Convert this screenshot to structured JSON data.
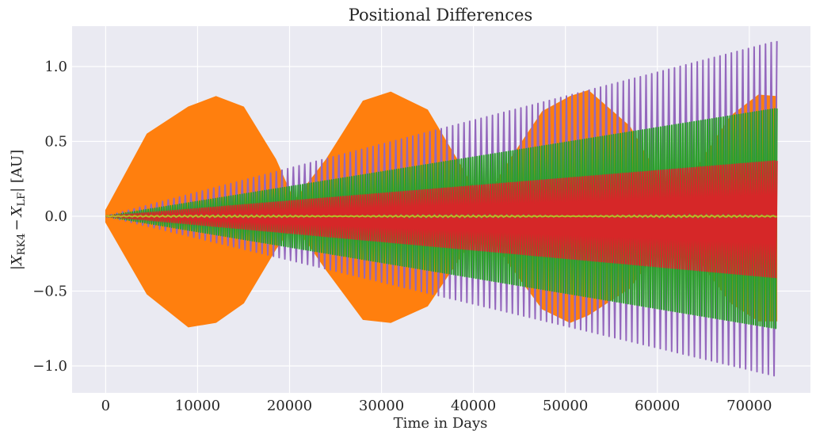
{
  "chart_data": {
    "type": "line",
    "title": "Positional Differences",
    "xlabel": "Time in Days",
    "ylabel": "|X_RK4 − X_LF| [AU]",
    "ylabel_parts": {
      "open": "|",
      "var1": "X",
      "sub1": "RK4",
      "minus": "−",
      "var2": "X",
      "sub2": "LF",
      "close": "| [AU]"
    },
    "xlim": [
      -3650,
      76650
    ],
    "ylim": [
      -1.18,
      1.27
    ],
    "xticks": [
      0,
      10000,
      20000,
      30000,
      40000,
      50000,
      60000,
      70000
    ],
    "xtick_labels": [
      "0",
      "10000",
      "20000",
      "30000",
      "40000",
      "50000",
      "60000",
      "70000"
    ],
    "yticks": [
      -1.0,
      -0.5,
      0.0,
      0.5,
      1.0
    ],
    "ytick_labels": [
      "−1.0",
      "−0.5",
      "0.0",
      "0.5",
      "1.0"
    ],
    "grid": true,
    "background": "#eaeaf2",
    "series": [
      {
        "kind": "beat-envelope",
        "color": "#ff7f0e",
        "x": [
          0,
          4500,
          9000,
          12000,
          15000,
          18500,
          20500,
          24000,
          28000,
          31000,
          35000,
          38500,
          41000,
          44000,
          47500,
          50500,
          52500,
          57000,
          60500,
          64000,
          68000,
          71000,
          73000
        ],
        "upper": [
          0.04,
          0.55,
          0.73,
          0.8,
          0.73,
          0.38,
          0.1,
          0.38,
          0.77,
          0.83,
          0.71,
          0.35,
          0.08,
          0.38,
          0.7,
          0.8,
          0.84,
          0.6,
          0.22,
          0.3,
          0.67,
          0.81,
          0.8
        ],
        "lower": [
          -0.04,
          -0.52,
          -0.74,
          -0.71,
          -0.58,
          -0.22,
          -0.05,
          -0.36,
          -0.69,
          -0.71,
          -0.6,
          -0.28,
          -0.05,
          -0.33,
          -0.62,
          -0.71,
          -0.66,
          -0.48,
          -0.18,
          -0.25,
          -0.58,
          -0.7,
          -0.7
        ]
      },
      {
        "kind": "oscillation",
        "color": "#9467bd",
        "x_start": 0,
        "x_end": 73000,
        "cycles": 118,
        "upper_start": 0.0,
        "upper_end": 1.17,
        "lower_start": 0.0,
        "lower_end": -1.07
      },
      {
        "kind": "oscillation",
        "color": "#2ca02c",
        "x_start": 0,
        "x_end": 73000,
        "cycles": 300,
        "upper_start": 0.0,
        "upper_end": 0.72,
        "lower_start": 0.0,
        "lower_end": -0.75
      },
      {
        "kind": "oscillation",
        "color": "#d62728",
        "x_start": 0,
        "x_end": 73000,
        "cycles": 300,
        "upper_start": 0.0,
        "upper_end": 0.37,
        "lower_start": 0.0,
        "lower_end": -0.41
      },
      {
        "kind": "near-zero",
        "color": "#8c564b",
        "x_start": 0,
        "x_end": 73000,
        "amplitude": 0.012
      },
      {
        "kind": "near-zero",
        "color": "#bcbd22",
        "x_start": 0,
        "x_end": 73000,
        "amplitude": 0.006
      }
    ]
  }
}
